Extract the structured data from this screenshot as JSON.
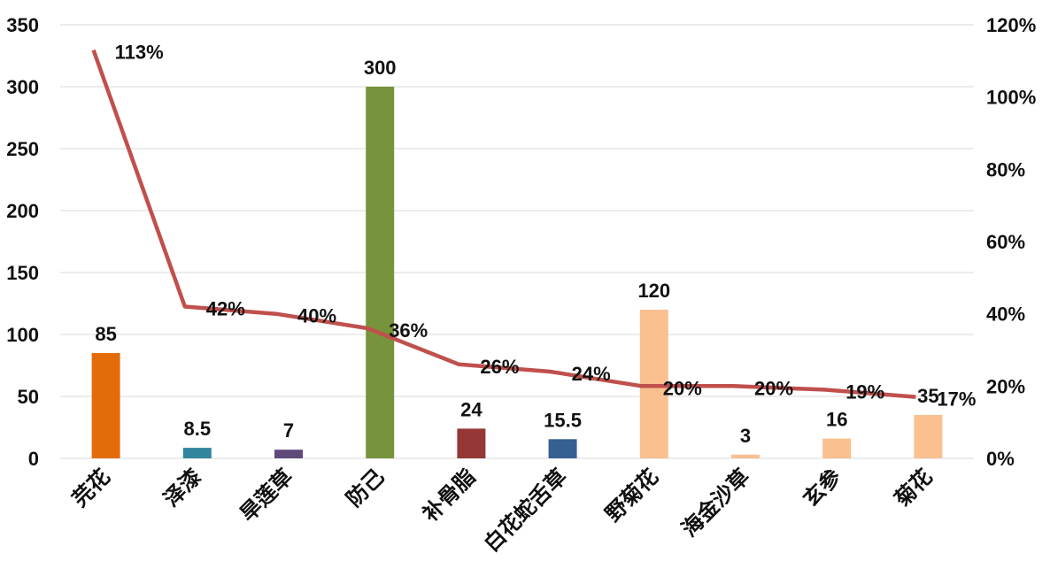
{
  "chart_data": {
    "type": "bar",
    "title": "",
    "xlabel": "",
    "ylabel": "",
    "categories": [
      "芫花",
      "泽漆",
      "旱莲草",
      "防己",
      "补骨脂",
      "白花蛇舌草",
      "野菊花",
      "海金沙草",
      "玄参",
      "菊花"
    ],
    "values": [
      85,
      8.5,
      7,
      300,
      24,
      15.5,
      120,
      3,
      16,
      35
    ],
    "value_labels": [
      "85",
      "8.5",
      "7",
      "300",
      "24",
      "15.5",
      "120",
      "3",
      "16",
      "35"
    ],
    "bar_colors": [
      "#e36c0a",
      "#31859c",
      "#604a7b",
      "#77933c",
      "#953735",
      "#366092",
      "#fac090",
      "#fac090",
      "#fac090",
      "#fac090"
    ],
    "ylim": [
      0,
      350
    ],
    "yticks": [
      "0",
      "50",
      "100",
      "150",
      "200",
      "250",
      "300",
      "350"
    ],
    "line_series": {
      "values": [
        113,
        42,
        40,
        36,
        26,
        24,
        20,
        20,
        19,
        17
      ],
      "labels": [
        "113%",
        "42%",
        "40%",
        "36%",
        "26%",
        "24%",
        "20%",
        "20%",
        "19%",
        "17%"
      ],
      "color": "#c0504d",
      "ylim": [
        0,
        120
      ],
      "yticks": [
        "0%",
        "20%",
        "40%",
        "60%",
        "80%",
        "100%",
        "120%"
      ]
    },
    "grid": true,
    "legend": "none"
  }
}
